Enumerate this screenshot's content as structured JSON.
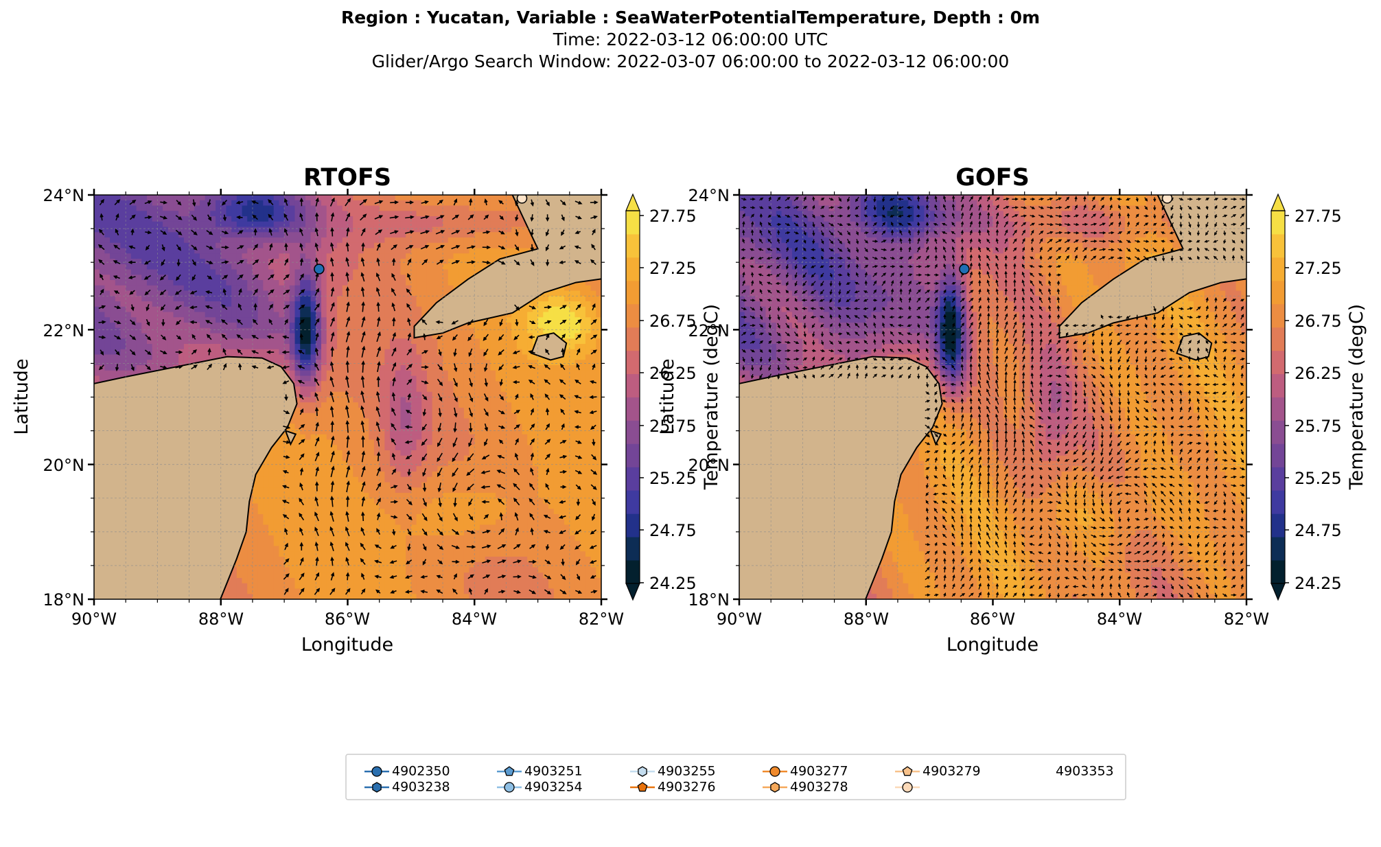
{
  "header": {
    "line1": "Region : Yucatan, Variable : SeaWaterPotentialTemperature, Depth : 0m",
    "line2": "Time: 2022-03-12 06:00:00 UTC",
    "line3": "Glider/Argo Search Window: 2022-03-07 06:00:00 to 2022-03-12 06:00:00"
  },
  "colors": {
    "land": "#d2b48c",
    "coast": "#000000",
    "grid": "#8c8c8c",
    "arrow": "#000000",
    "colormap": [
      "#03202e",
      "#0d2d55",
      "#22318a",
      "#3f3aa0",
      "#5a3e9e",
      "#734597",
      "#8a4d92",
      "#a3548b",
      "#bd5d80",
      "#d26a6f",
      "#e17c57",
      "#ec8d42",
      "#f29c33",
      "#f6ad33",
      "#f8c23a",
      "#f6df45"
    ]
  },
  "map_extent": {
    "lon": [
      -90,
      -82
    ],
    "lat": [
      18,
      24
    ]
  },
  "axis_labels": {
    "x": "Longitude",
    "y": "Latitude",
    "colorbar": "Temperature (degC)"
  },
  "lon_ticks": [
    "90°W",
    "88°W",
    "86°W",
    "84°W",
    "82°W"
  ],
  "lat_ticks": [
    "18°N",
    "20°N",
    "22°N",
    "24°N"
  ],
  "colorbar_ticks": [
    "24.25",
    "24.75",
    "25.25",
    "25.75",
    "26.25",
    "26.75",
    "27.25",
    "27.75"
  ],
  "panels": [
    {
      "title": "RTOFS",
      "arrow_style": "sparse"
    },
    {
      "title": "GOFS",
      "arrow_style": "dense"
    }
  ],
  "floats_on_map": [
    {
      "id": "4902350",
      "lon": -86.45,
      "lat": 22.9,
      "color": "#1f6fb4"
    },
    {
      "id": "4903353",
      "lon": -83.25,
      "lat": 23.95,
      "color": "#fde3c8"
    }
  ],
  "legend": [
    {
      "label": "4902350",
      "color": "#2a6faf",
      "marker": "circle"
    },
    {
      "label": "4903238",
      "color": "#2a6faf",
      "marker": "hexagon"
    },
    {
      "label": "4903251",
      "color": "#5b9bd0",
      "marker": "pentagon"
    },
    {
      "label": "4903254",
      "color": "#8ebfe4",
      "marker": "circle"
    },
    {
      "label": "4903255",
      "color": "#c4ddef",
      "marker": "hexagon"
    },
    {
      "label": "4903276",
      "color": "#e8720c",
      "marker": "pentagon"
    },
    {
      "label": "4903277",
      "color": "#f08a2c",
      "marker": "circle"
    },
    {
      "label": "4903278",
      "color": "#f5a85a",
      "marker": "hexagon"
    },
    {
      "label": "4903279",
      "color": "#f7c18a",
      "marker": "pentagon"
    },
    {
      "label": "4903353",
      "color": "#fbd9b8",
      "marker": "circle"
    }
  ]
}
